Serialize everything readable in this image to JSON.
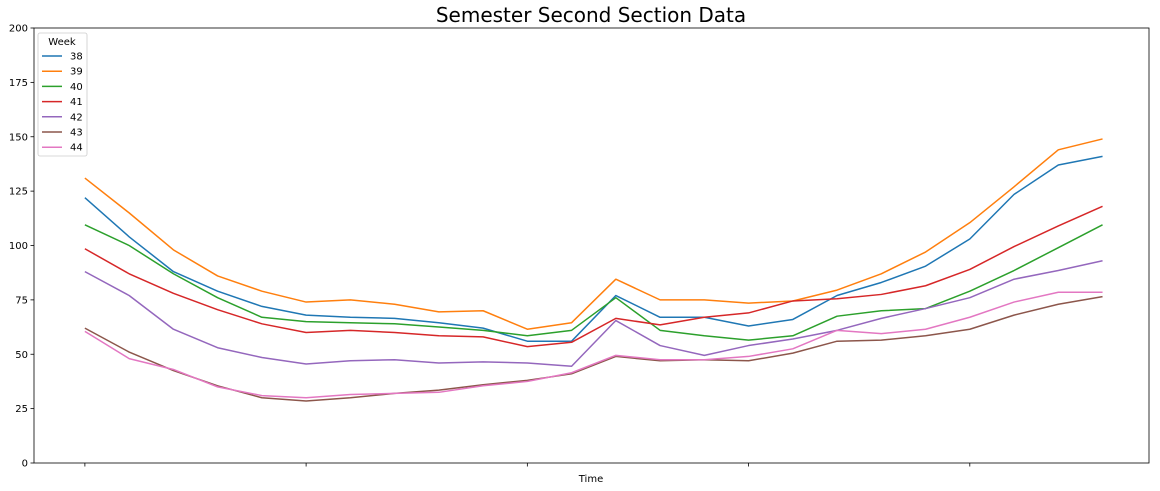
{
  "chart_data": {
    "type": "line",
    "title": "Semester Second Section Data",
    "xlabel": "Time",
    "ylabel": "",
    "ylim": [
      0,
      200
    ],
    "yticks": [
      0,
      25,
      50,
      75,
      100,
      125,
      150,
      175,
      200
    ],
    "x": [
      0,
      1,
      2,
      3,
      4,
      5,
      6,
      7,
      8,
      9,
      10,
      11,
      12,
      13,
      14,
      15,
      16,
      17,
      18,
      19,
      20,
      21,
      22,
      23
    ],
    "xlim": [
      -1.15,
      24.05
    ],
    "xtick_positions": [
      0,
      5,
      10,
      15,
      20
    ],
    "grid": false,
    "legend": {
      "title": "Week",
      "placement": "top-left"
    },
    "series": [
      {
        "name": "38",
        "color": "#1f77b4",
        "values": [
          122,
          104,
          88,
          79,
          72,
          68,
          67,
          66.5,
          64.5,
          62,
          56,
          56,
          77,
          67,
          67,
          63,
          66,
          77,
          83,
          90.5,
          103,
          123.5,
          137,
          141
        ]
      },
      {
        "name": "39",
        "color": "#ff7f0e",
        "values": [
          131,
          115,
          98,
          86,
          79,
          74,
          75,
          73,
          69.5,
          70,
          61.5,
          64.5,
          84.5,
          75,
          75,
          73.5,
          74.5,
          79.5,
          87,
          97,
          110.5,
          127,
          144,
          149
        ]
      },
      {
        "name": "40",
        "color": "#2ca02c",
        "values": [
          109.5,
          100,
          87,
          76,
          67,
          65,
          64.5,
          64,
          62.5,
          61,
          58.5,
          61,
          76,
          61,
          58.5,
          56.5,
          58.5,
          67.5,
          70,
          71,
          79,
          88.5,
          99,
          109.5
        ]
      },
      {
        "name": "41",
        "color": "#d62728",
        "values": [
          98.5,
          87,
          78,
          70.5,
          64,
          60,
          61,
          60,
          58.5,
          58,
          53.5,
          55.5,
          66.5,
          63.5,
          67,
          69,
          74.5,
          75.5,
          77.5,
          81.5,
          89,
          99.5,
          109,
          118
        ]
      },
      {
        "name": "42",
        "color": "#9467bd",
        "values": [
          88,
          77,
          61.5,
          53,
          48.5,
          45.5,
          47,
          47.5,
          46,
          46.5,
          46,
          44.5,
          65.5,
          54,
          49.5,
          54,
          57,
          61,
          66.5,
          71,
          76,
          84.5,
          88.5,
          93
        ]
      },
      {
        "name": "43",
        "color": "#8c564b",
        "values": [
          62,
          51,
          42.5,
          35.5,
          30,
          28.5,
          30,
          32,
          33.5,
          36,
          38,
          41,
          49,
          47,
          47.5,
          47,
          50.5,
          56,
          56.5,
          58.5,
          61.5,
          68,
          73,
          76.5
        ]
      },
      {
        "name": "44",
        "color": "#e377c2",
        "values": [
          60.5,
          48,
          43,
          35,
          31,
          30,
          31.5,
          32,
          32.5,
          35.5,
          37.5,
          41.5,
          49.5,
          47.5,
          47.5,
          49,
          52.5,
          61,
          59.5,
          61.5,
          67,
          74,
          78.5,
          78.5
        ]
      }
    ]
  }
}
